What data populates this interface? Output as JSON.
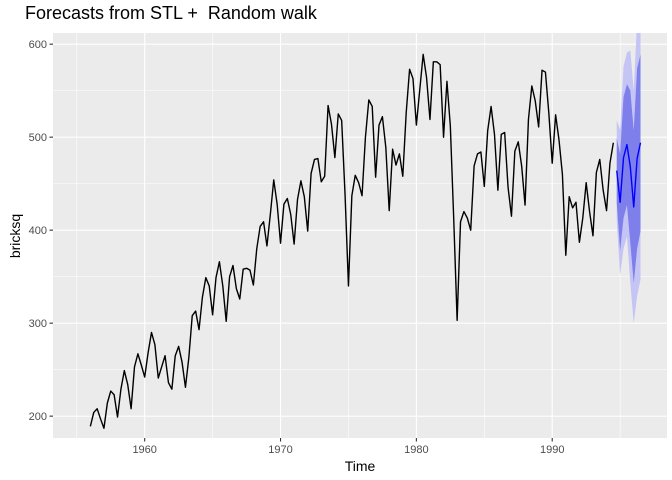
{
  "chart_data": {
    "type": "line",
    "title": "Forecasts from STL +  Random walk",
    "xlabel": "Time",
    "ylabel": "bricksq",
    "xlim": [
      1953.25,
      1998.45
    ],
    "ylim": [
      176.5,
      612
    ],
    "x_ticks": [
      1960,
      1970,
      1980,
      1990
    ],
    "y_ticks": [
      200,
      300,
      400,
      500,
      600
    ],
    "grid": true,
    "background": "#ebebeb",
    "colors": {
      "history": "#000000",
      "forecast": "#0000ff",
      "band80": "#7f7fec",
      "band95": "#c4c4f5",
      "gridline": "#ffffff",
      "tick_text": "#4d4d4d"
    },
    "history": {
      "start": 1956.0,
      "frequency": 4,
      "values": [
        189,
        204,
        208,
        197,
        187,
        214,
        227,
        223,
        199,
        229,
        249,
        234,
        208,
        253,
        267,
        255,
        242,
        268,
        290,
        277,
        241,
        253,
        265,
        236,
        229,
        265,
        275,
        258,
        231,
        263,
        308,
        313,
        293,
        328,
        349,
        340,
        309,
        349,
        366,
        340,
        302,
        350,
        362,
        337,
        326,
        358,
        359,
        357,
        341,
        380,
        404,
        409,
        383,
        417,
        454,
        428,
        386,
        428,
        434,
        417,
        385,
        433,
        453,
        436,
        399,
        461,
        476,
        477,
        452,
        458,
        534,
        514,
        478,
        525,
        518,
        438,
        340,
        437,
        459,
        451,
        437,
        500,
        540,
        533,
        457,
        513,
        522,
        489,
        421,
        487,
        470,
        482,
        458,
        526,
        573,
        563,
        513,
        551,
        589,
        564,
        519,
        581,
        581,
        578,
        500,
        560,
        512,
        412,
        303,
        409,
        420,
        413,
        400,
        469,
        482,
        484,
        447,
        507,
        533,
        503,
        443,
        503,
        505,
        446,
        415,
        485,
        495,
        469,
        427,
        519,
        555,
        539,
        511,
        572,
        570,
        526,
        472,
        524,
        497,
        460,
        373,
        436,
        424,
        430,
        387,
        413,
        451,
        420,
        394,
        462,
        476,
        443,
        421,
        472,
        494
      ],
      "_note": "quarterly series 1956 Q1 - 1994 Q3"
    },
    "forecast": {
      "start": 1994.75,
      "frequency": 4,
      "mean": [
        464,
        430,
        478,
        492,
        468,
        425,
        477,
        494
      ],
      "lo80": [
        429,
        378,
        413,
        427,
        386,
        343,
        380,
        399
      ],
      "hi80": [
        499,
        482,
        543,
        557,
        550,
        507,
        574,
        589
      ],
      "lo95": [
        410,
        352,
        380,
        393,
        343,
        300,
        329,
        347
      ],
      "hi95": [
        518,
        508,
        576,
        591,
        593,
        550,
        625,
        641
      ]
    }
  }
}
